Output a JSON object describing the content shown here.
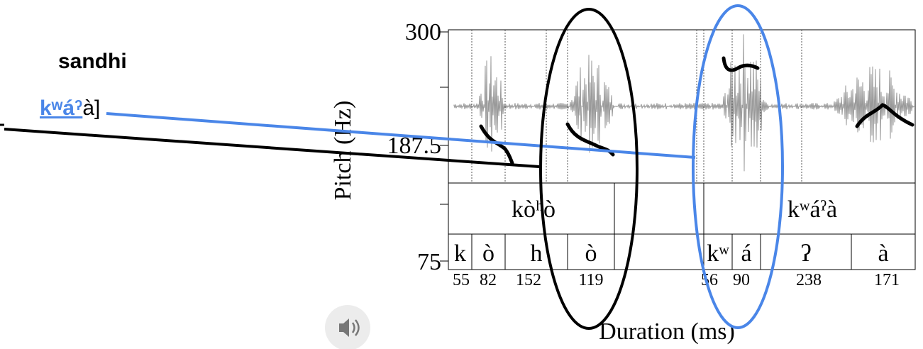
{
  "left_text": {
    "heading": "sandhi",
    "word_blue": "kʷáˀ",
    "word_rest": "à]"
  },
  "figure": {
    "y_axis_label": "Pitch (Hz)",
    "x_axis_label": "Duration (ms)",
    "y_ticks": [
      "300",
      "187.5",
      "75"
    ],
    "words": [
      "kòʰò",
      "kʷáˀà"
    ],
    "segments": [
      "k",
      "ò",
      "h",
      "ò",
      "kʷ",
      "á",
      "ʔ",
      "à"
    ],
    "durations": [
      "55",
      "82",
      "152",
      "119",
      "56",
      "90",
      "238",
      "171"
    ]
  }
}
